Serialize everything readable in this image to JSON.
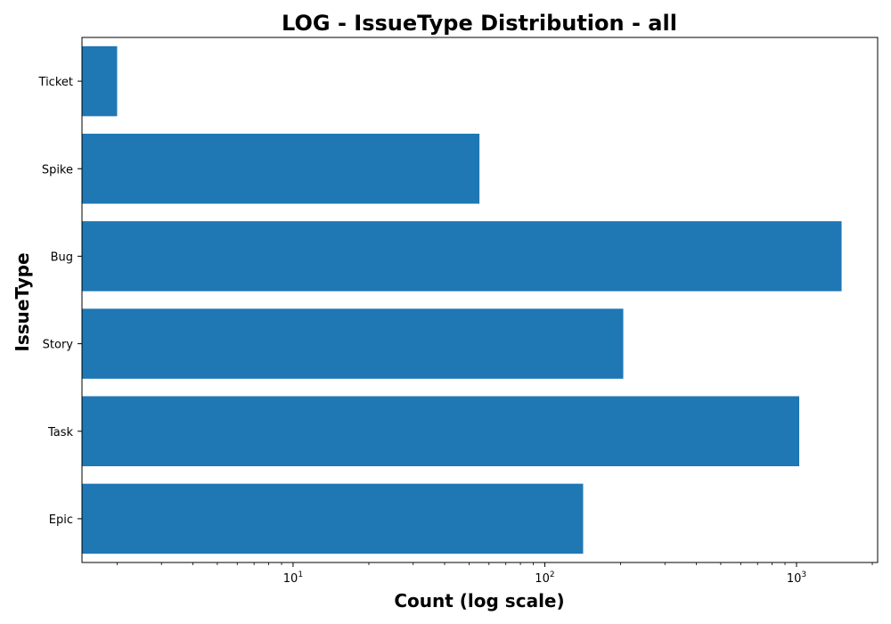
{
  "chart_data": {
    "type": "bar",
    "orientation": "horizontal",
    "title": "LOG - IssueType Distribution - all",
    "xlabel": "Count (log scale)",
    "ylabel": "IssueType",
    "xscale": "log",
    "xlim": [
      1.45,
      2100
    ],
    "categories": [
      "Epic",
      "Task",
      "Story",
      "Bug",
      "Spike",
      "Ticket"
    ],
    "values": [
      142,
      1025,
      205,
      1510,
      55,
      2
    ],
    "x_ticks": [
      {
        "value": 10,
        "base": "10",
        "exp": "1"
      },
      {
        "value": 100,
        "base": "10",
        "exp": "2"
      },
      {
        "value": 1000,
        "base": "10",
        "exp": "3"
      }
    ],
    "bar_color": "#1f77b4",
    "grid": false,
    "legend": "none"
  }
}
